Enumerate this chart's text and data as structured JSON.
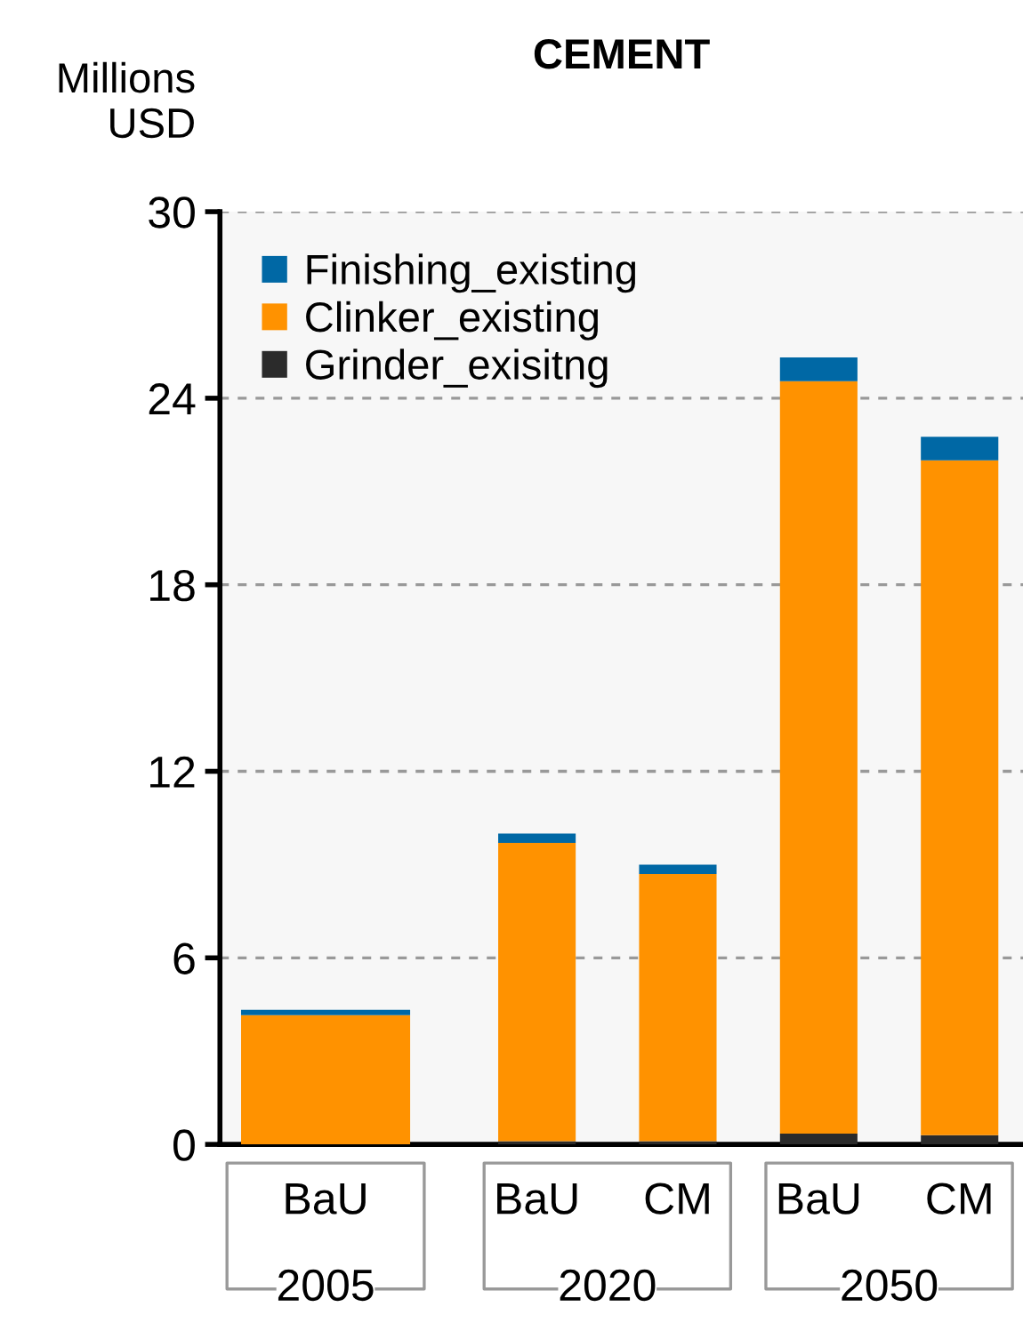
{
  "chart_data": {
    "type": "bar",
    "title": "CEMENT",
    "ylabel": "Millions\nUSD",
    "categories": [
      "BaU",
      "BaU",
      "CM",
      "BaU",
      "CM"
    ],
    "stacked": true,
    "series": [
      {
        "name": "Grinder_exisitng",
        "color": "#2b2b2b",
        "values": [
          0,
          0.1,
          0.1,
          0.35,
          0.3
        ]
      },
      {
        "name": "Clinker_existing",
        "color": "#ff9200",
        "values": [
          4.16,
          9.6,
          8.6,
          24.2,
          21.7
        ]
      },
      {
        "name": "Finishing_existing",
        "color": "#0068a5",
        "values": [
          0.17,
          0.3,
          0.3,
          0.76,
          0.76
        ]
      }
    ],
    "annotations": [
      "2005",
      "2020",
      "2050"
    ],
    "ylim": [
      0,
      30
    ],
    "yticks": [
      0,
      6,
      12,
      18,
      24,
      30
    ],
    "grid": "y",
    "legend": "top left"
  }
}
